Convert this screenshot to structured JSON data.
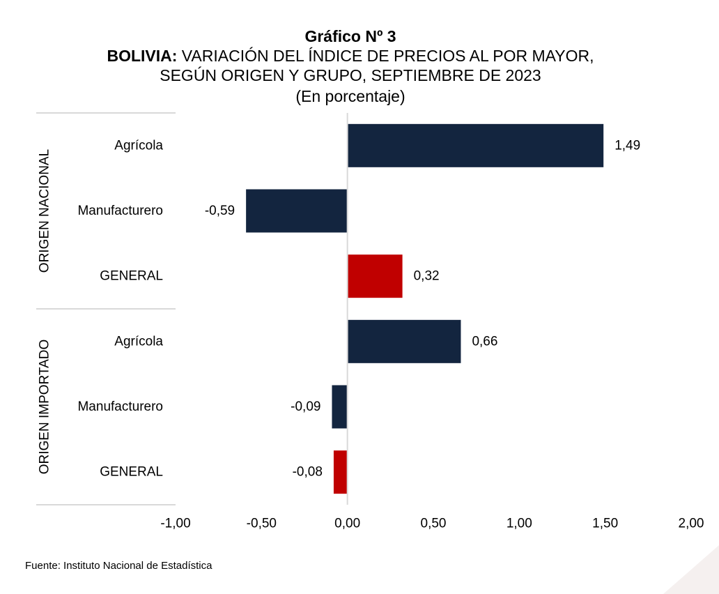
{
  "chart_data": {
    "type": "bar",
    "orientation": "horizontal",
    "title": "Gráfico Nº 3",
    "subtitle_bold": "BOLIVIA:",
    "subtitle_line1": "VARIACIÓN DEL ÍNDICE DE PRECIOS AL POR MAYOR,",
    "subtitle_line2": "SEGÚN ORIGEN Y GRUPO, SEPTIEMBRE DE 2023",
    "unit_note": "(En porcentaje)",
    "groups": [
      {
        "name": "ORIGEN NACIONAL",
        "categories": [
          "Agrícola",
          "Manufacturero",
          "GENERAL"
        ],
        "values": [
          1.49,
          -0.59,
          0.32
        ],
        "labels": [
          "1,49",
          "-0,59",
          "0,32"
        ]
      },
      {
        "name": "ORIGEN IMPORTADO",
        "categories": [
          "Agrícola",
          "Manufacturero",
          "GENERAL"
        ],
        "values": [
          0.66,
          -0.09,
          -0.08
        ],
        "labels": [
          "0,66",
          "-0,09",
          "-0,08"
        ]
      }
    ],
    "xlim": [
      -1.0,
      2.0
    ],
    "xticks": [
      -1.0,
      -0.5,
      0.0,
      0.5,
      1.0,
      1.5,
      2.0
    ],
    "xtick_labels": [
      "-1,00",
      "-0,50",
      "0,00",
      "0,50",
      "1,00",
      "1,50",
      "2,00"
    ],
    "grid": false,
    "colors": {
      "component": "#13253f",
      "general": "#c00000",
      "axis": "#d9d9d9"
    }
  },
  "footer": {
    "source": "Fuente: Instituto Nacional de Estadística"
  }
}
